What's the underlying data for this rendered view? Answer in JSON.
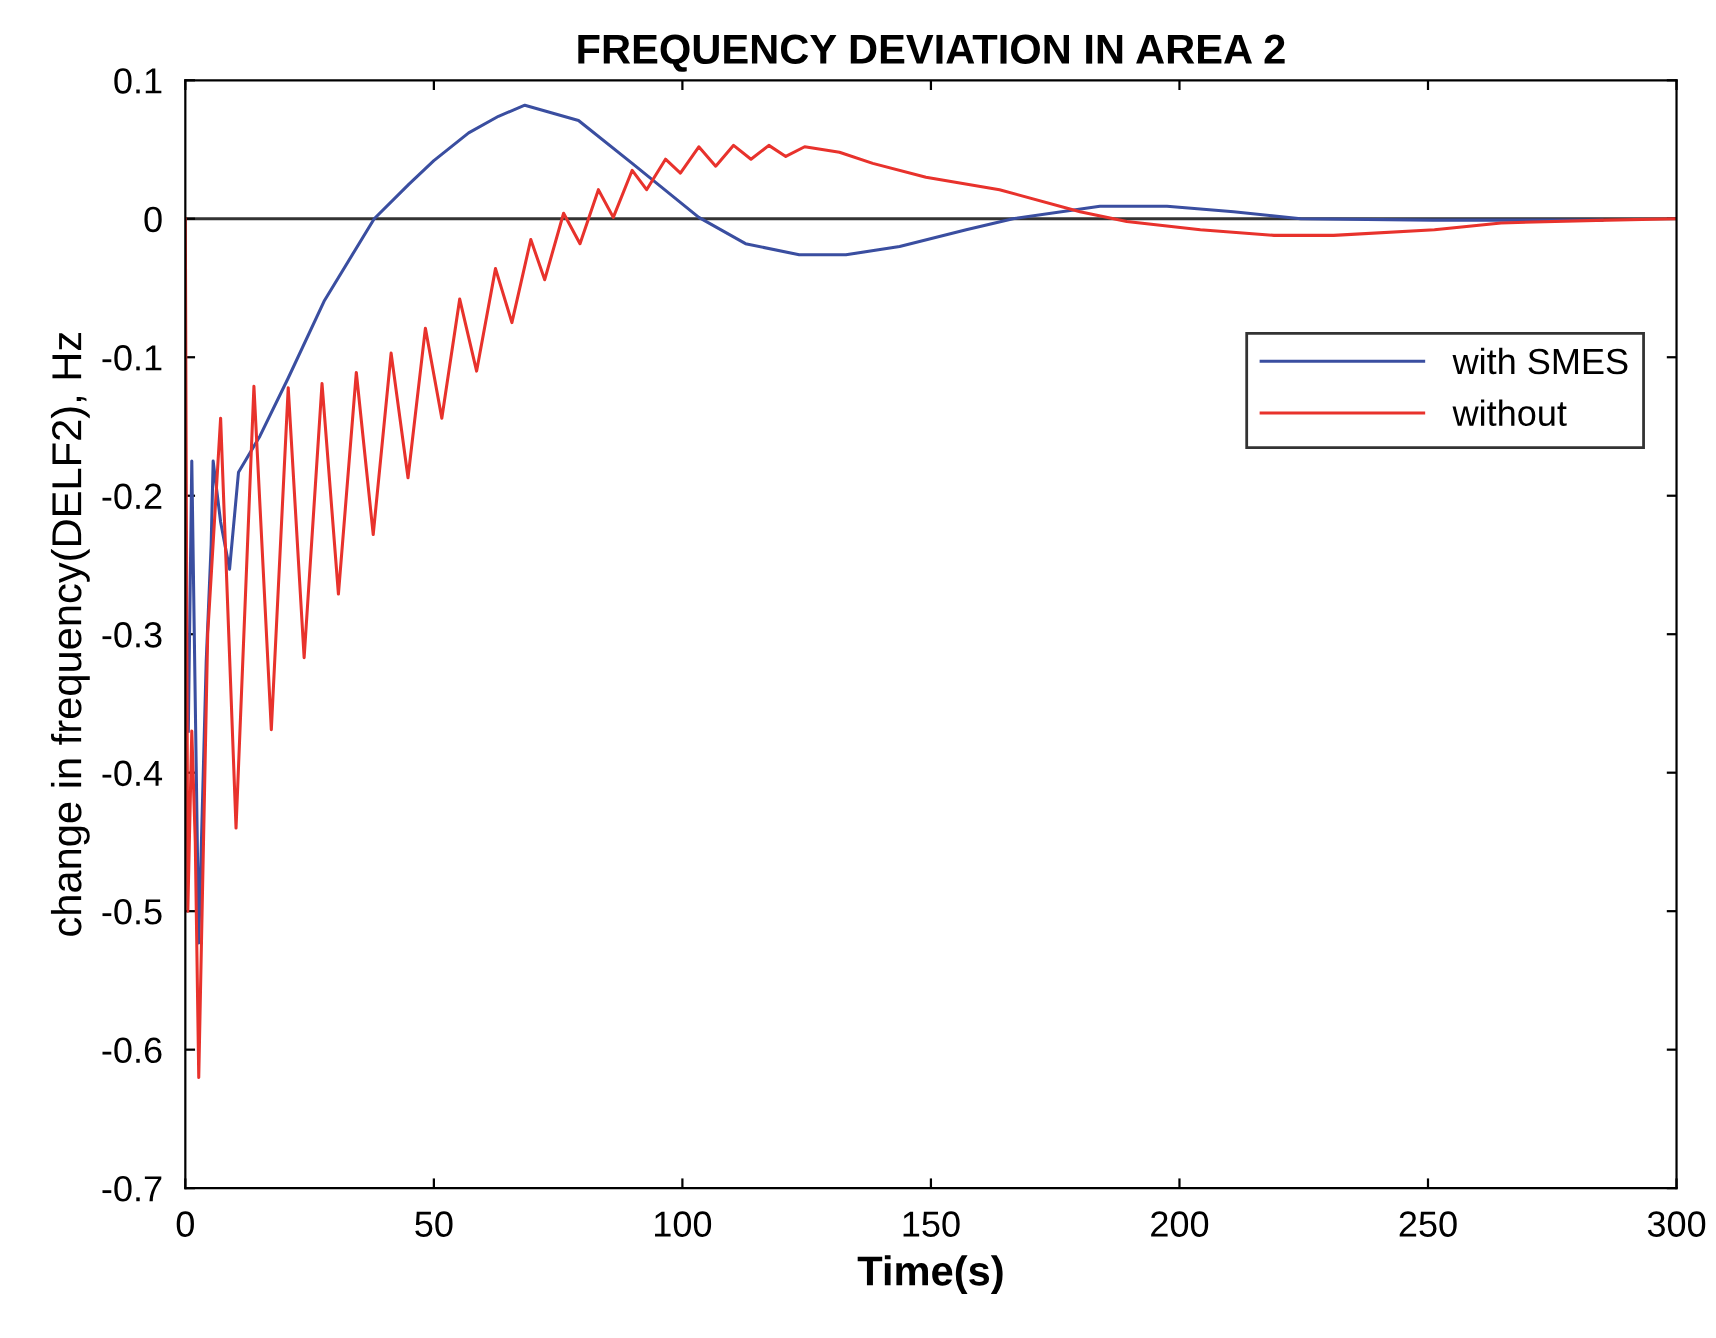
{
  "chart_data": {
    "type": "line",
    "title": "FREQUENCY DEVIATION IN AREA 2",
    "xlabel": "Time(s)",
    "ylabel": "change in frequency(DELF2), Hz",
    "xlim": [
      0,
      300
    ],
    "xticks": [
      0,
      50,
      100,
      150,
      200,
      250,
      300
    ],
    "ylim": [
      -0.7,
      0.1
    ],
    "yticks": [
      -0.7,
      -0.6,
      -0.5,
      -0.4,
      -0.3,
      -0.2,
      -0.1,
      0,
      0.1
    ],
    "grid": false,
    "legend": "right",
    "marker": "none",
    "line_style": "solid",
    "ref_lines": [
      {
        "axis": "y",
        "value": 0,
        "color": "#333333"
      }
    ],
    "series": [
      {
        "name": "with SMES",
        "color": "#3a4ea0",
        "x": [
          0.6,
          1.3,
          2.7,
          4.2,
          5.2,
          5.6,
          7.1,
          8.9,
          10.7,
          15,
          20.7,
          28,
          38,
          45,
          50,
          57,
          63,
          68.3,
          79.1,
          89.9,
          103.3,
          112.7,
          123.5,
          132.9,
          143.7,
          157.1,
          166.5,
          184,
          197.5,
          210.9,
          224.4,
          251,
          285
        ],
        "values": [
          -0.37,
          -0.175,
          -0.523,
          -0.32,
          -0.235,
          -0.175,
          -0.219,
          -0.253,
          -0.183,
          -0.157,
          -0.115,
          -0.059,
          0.0,
          0.025,
          0.042,
          0.062,
          0.074,
          0.082,
          0.071,
          0.04,
          0.001,
          -0.018,
          -0.026,
          -0.026,
          -0.02,
          -0.008,
          0.0,
          0.009,
          0.009,
          0.005,
          0.0,
          -0.001,
          -0.001
        ]
      },
      {
        "name": "without",
        "color": "#e8322c",
        "x": [
          0,
          0.5,
          1.3,
          2.0,
          2.7,
          4.5,
          7.1,
          10.2,
          13.8,
          17.3,
          20.7,
          23.9,
          27.5,
          30.8,
          34.4,
          37.8,
          41.4,
          44.8,
          48.3,
          51.6,
          55.2,
          58.6,
          62.4,
          65.7,
          69.5,
          72.3,
          76.1,
          79.4,
          83.1,
          86.1,
          89.9,
          92.8,
          96.6,
          99.6,
          103.3,
          106.7,
          110.3,
          113.8,
          117.4,
          120.8,
          124.6,
          131.6,
          138.3,
          149,
          163.8,
          180,
          189.4,
          204.2,
          219,
          231,
          251.3,
          264.7,
          286,
          300
        ],
        "values": [
          0,
          -0.5,
          -0.37,
          -0.45,
          -0.62,
          -0.3,
          -0.144,
          -0.44,
          -0.121,
          -0.369,
          -0.122,
          -0.317,
          -0.119,
          -0.271,
          -0.111,
          -0.228,
          -0.097,
          -0.187,
          -0.079,
          -0.144,
          -0.058,
          -0.11,
          -0.036,
          -0.075,
          -0.015,
          -0.044,
          0.004,
          -0.018,
          0.021,
          0.001,
          0.035,
          0.021,
          0.043,
          0.033,
          0.052,
          0.038,
          0.053,
          0.043,
          0.053,
          0.045,
          0.052,
          0.048,
          0.04,
          0.03,
          0.021,
          0.005,
          -0.002,
          -0.008,
          -0.012,
          -0.012,
          -0.008,
          -0.003,
          -0.001,
          0
        ]
      }
    ]
  }
}
